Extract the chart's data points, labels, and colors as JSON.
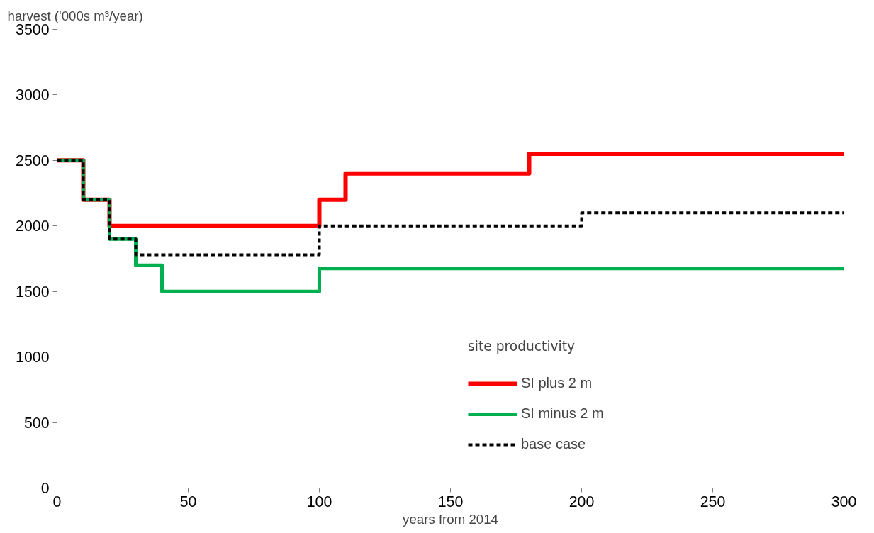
{
  "chart_data": {
    "type": "step",
    "xlabel": "years from 2014",
    "ylabel": "harvest  ('000s m³/year)",
    "legend_title": "site productivity",
    "legend": "right",
    "grid": false,
    "xlim": [
      0,
      300
    ],
    "xticks": [
      0,
      50,
      100,
      150,
      200,
      250,
      300
    ],
    "ylim": [
      0,
      3500
    ],
    "yticks": [
      0,
      500,
      1000,
      1500,
      2000,
      2500,
      3000,
      3500
    ],
    "series": [
      {
        "name": "SI plus 2 m",
        "color": "#ff0000",
        "line_style": "solid",
        "x": [
          0,
          10,
          20,
          100,
          110,
          180,
          300
        ],
        "values": [
          2500,
          2200,
          2000,
          2200,
          2400,
          2550,
          2550
        ]
      },
      {
        "name": "SI minus 2 m",
        "color": "#00b050",
        "line_style": "solid",
        "x": [
          0,
          10,
          20,
          30,
          40,
          100,
          300
        ],
        "values": [
          2500,
          2200,
          1900,
          1700,
          1500,
          1675,
          1675
        ]
      },
      {
        "name": "base case",
        "color": "#000000",
        "line_style": "dashed",
        "x": [
          0,
          10,
          20,
          30,
          100,
          200,
          300
        ],
        "values": [
          2500,
          2200,
          1900,
          1780,
          2000,
          2100,
          2100
        ]
      }
    ]
  }
}
